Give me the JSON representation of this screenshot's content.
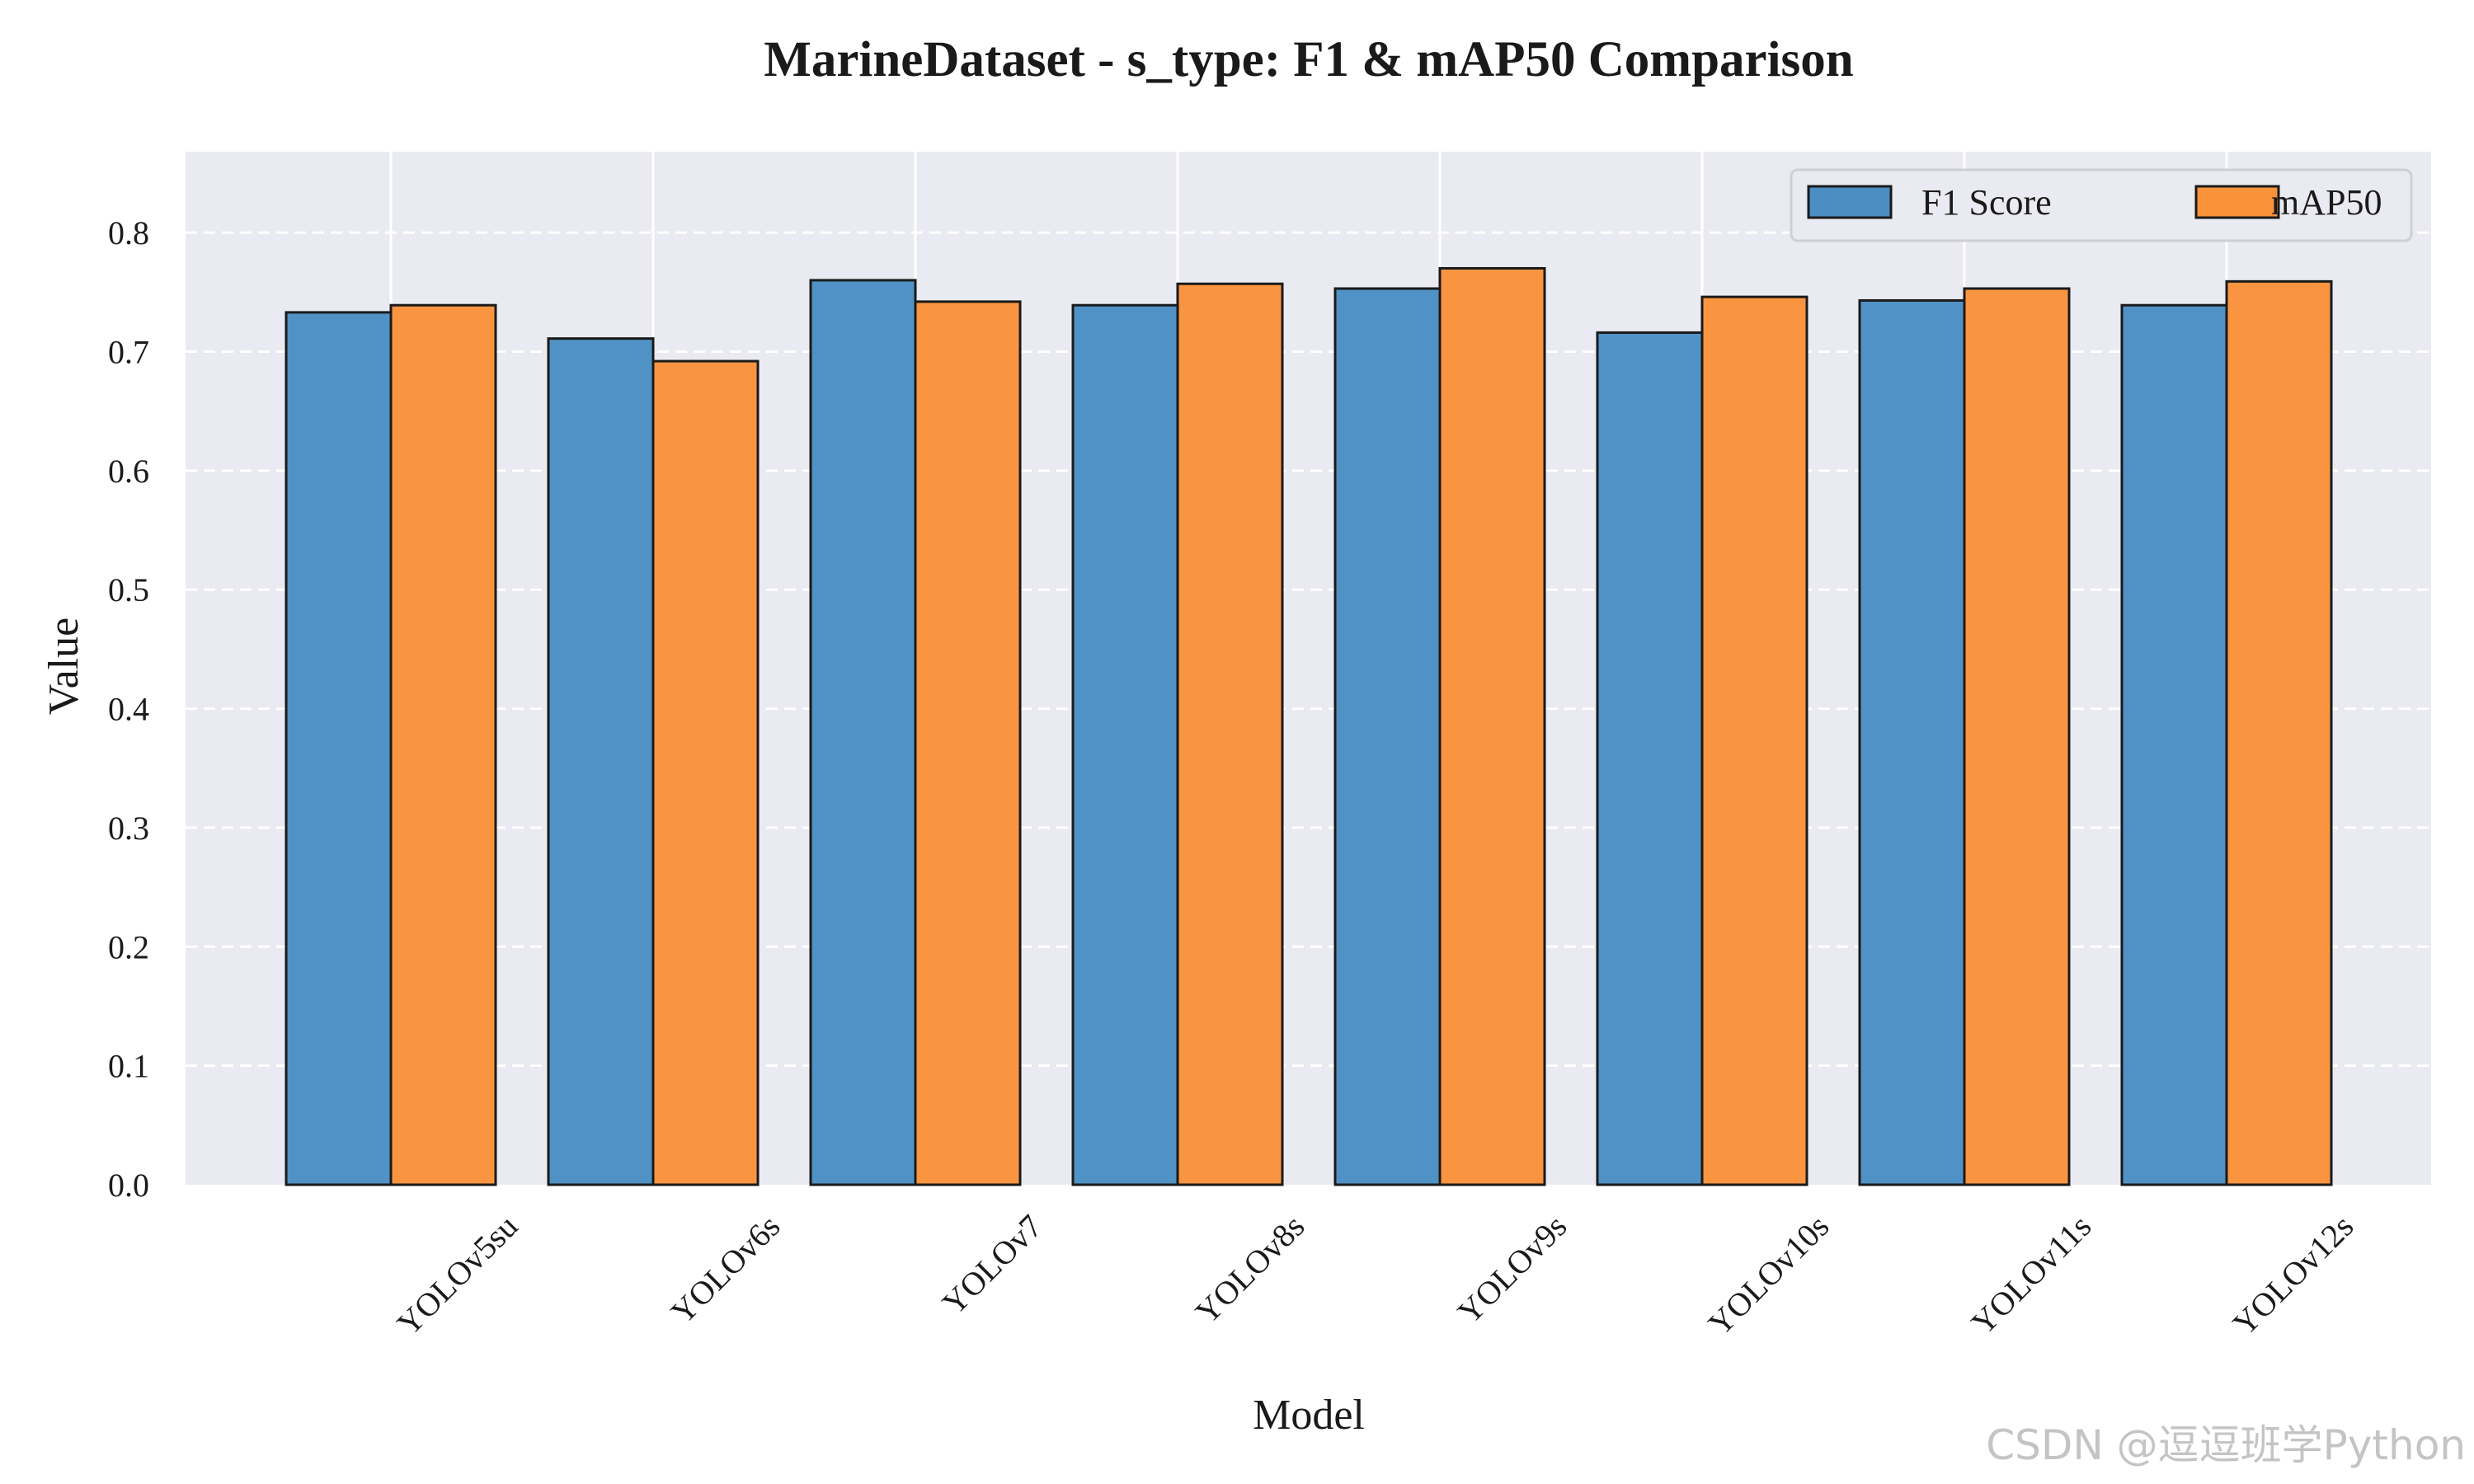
{
  "chart_data": {
    "type": "bar",
    "title": "MarineDataset - s_type: F1 & mAP50 Comparison",
    "xlabel": "Model",
    "ylabel": "Value",
    "categories": [
      "YOLOv5su",
      "YOLOv6s",
      "YOLOv7",
      "YOLOv8s",
      "YOLOv9s",
      "YOLOv10s",
      "YOLOv11s",
      "YOLOv12s"
    ],
    "series": [
      {
        "name": "F1 Score",
        "color": "#4a8ec3",
        "values": [
          0.733,
          0.711,
          0.76,
          0.739,
          0.753,
          0.716,
          0.743,
          0.739
        ]
      },
      {
        "name": "mAP50",
        "color": "#f9923b",
        "values": [
          0.739,
          0.692,
          0.742,
          0.757,
          0.77,
          0.746,
          0.753,
          0.759
        ]
      }
    ],
    "ylim": [
      0,
      0.868
    ],
    "yticks": [
      "0.0",
      "0.1",
      "0.2",
      "0.3",
      "0.4",
      "0.5",
      "0.6",
      "0.7",
      "0.8"
    ],
    "grid": true,
    "legend_position": "top-right",
    "legend_layout": "horizontal",
    "plot_background": "#eaeaf2",
    "bar_edge_color": "#1a1a1a",
    "grid_color": "#ffffff",
    "watermark": "CSDN @逗逗班学Python"
  }
}
